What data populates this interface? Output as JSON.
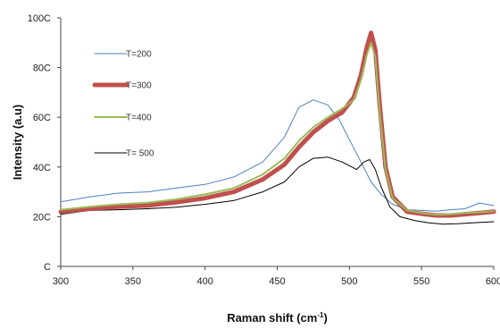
{
  "chart_data": {
    "type": "line",
    "xlabel": "Raman shift (cm-1)",
    "xlabel_base": "Raman shift (cm",
    "xlabel_sup": "-1",
    "xlabel_close": ")",
    "ylabel": "Intensity (a.u)",
    "xlim": [
      300,
      600
    ],
    "ylim": [
      0,
      1000
    ],
    "x_ticks": [
      300,
      350,
      400,
      450,
      500,
      550,
      600
    ],
    "y_ticks": [
      0,
      200,
      400,
      600,
      800,
      1000
    ],
    "x_tick_labels": [
      "300",
      "350",
      "400",
      "450",
      "500",
      "550",
      "600"
    ],
    "y_tick_labels": [
      "C",
      "20C",
      "40C",
      "60C",
      "80C",
      "100C"
    ],
    "grid": false,
    "legend_position": "top-left",
    "series": [
      {
        "name": "T=200",
        "color": "#4f81bd",
        "width": 1,
        "points": [
          [
            300,
            260
          ],
          [
            320,
            280
          ],
          [
            340,
            295
          ],
          [
            360,
            300
          ],
          [
            380,
            315
          ],
          [
            400,
            330
          ],
          [
            420,
            360
          ],
          [
            440,
            420
          ],
          [
            455,
            520
          ],
          [
            465,
            640
          ],
          [
            475,
            670
          ],
          [
            485,
            650
          ],
          [
            493,
            590
          ],
          [
            500,
            510
          ],
          [
            508,
            420
          ],
          [
            515,
            340
          ],
          [
            522,
            290
          ],
          [
            530,
            250
          ],
          [
            540,
            228
          ],
          [
            550,
            225
          ],
          [
            560,
            222
          ],
          [
            570,
            228
          ],
          [
            580,
            232
          ],
          [
            590,
            255
          ],
          [
            600,
            245
          ]
        ]
      },
      {
        "name": "T=300",
        "color": "#c0504d",
        "width": 5,
        "points": [
          [
            300,
            220
          ],
          [
            320,
            232
          ],
          [
            340,
            240
          ],
          [
            360,
            245
          ],
          [
            380,
            258
          ],
          [
            400,
            275
          ],
          [
            420,
            300
          ],
          [
            440,
            350
          ],
          [
            455,
            410
          ],
          [
            465,
            480
          ],
          [
            475,
            540
          ],
          [
            485,
            585
          ],
          [
            495,
            620
          ],
          [
            503,
            680
          ],
          [
            508,
            770
          ],
          [
            512,
            880
          ],
          [
            515,
            940
          ],
          [
            518,
            870
          ],
          [
            521,
            650
          ],
          [
            525,
            400
          ],
          [
            530,
            280
          ],
          [
            540,
            220
          ],
          [
            550,
            212
          ],
          [
            560,
            205
          ],
          [
            570,
            205
          ],
          [
            580,
            210
          ],
          [
            590,
            215
          ],
          [
            600,
            220
          ]
        ]
      },
      {
        "name": "T=400",
        "color": "#9bbb59",
        "width": 2,
        "points": [
          [
            300,
            228
          ],
          [
            320,
            240
          ],
          [
            340,
            250
          ],
          [
            360,
            256
          ],
          [
            380,
            270
          ],
          [
            400,
            290
          ],
          [
            420,
            315
          ],
          [
            440,
            370
          ],
          [
            455,
            435
          ],
          [
            465,
            505
          ],
          [
            475,
            560
          ],
          [
            485,
            600
          ],
          [
            495,
            635
          ],
          [
            503,
            670
          ],
          [
            508,
            750
          ],
          [
            512,
            850
          ],
          [
            515,
            900
          ],
          [
            518,
            840
          ],
          [
            521,
            620
          ],
          [
            525,
            390
          ],
          [
            530,
            275
          ],
          [
            540,
            225
          ],
          [
            550,
            215
          ],
          [
            560,
            208
          ],
          [
            570,
            210
          ],
          [
            580,
            215
          ],
          [
            590,
            218
          ],
          [
            600,
            222
          ]
        ]
      },
      {
        "name": "T= 500",
        "color": "#000000",
        "width": 1,
        "points": [
          [
            300,
            210
          ],
          [
            320,
            225
          ],
          [
            340,
            228
          ],
          [
            360,
            232
          ],
          [
            380,
            238
          ],
          [
            400,
            250
          ],
          [
            420,
            265
          ],
          [
            440,
            300
          ],
          [
            455,
            340
          ],
          [
            465,
            400
          ],
          [
            475,
            435
          ],
          [
            485,
            440
          ],
          [
            495,
            420
          ],
          [
            505,
            390
          ],
          [
            510,
            420
          ],
          [
            514,
            430
          ],
          [
            518,
            390
          ],
          [
            522,
            320
          ],
          [
            528,
            240
          ],
          [
            535,
            200
          ],
          [
            545,
            185
          ],
          [
            555,
            175
          ],
          [
            565,
            170
          ],
          [
            575,
            172
          ],
          [
            585,
            175
          ],
          [
            600,
            180
          ]
        ]
      }
    ]
  }
}
